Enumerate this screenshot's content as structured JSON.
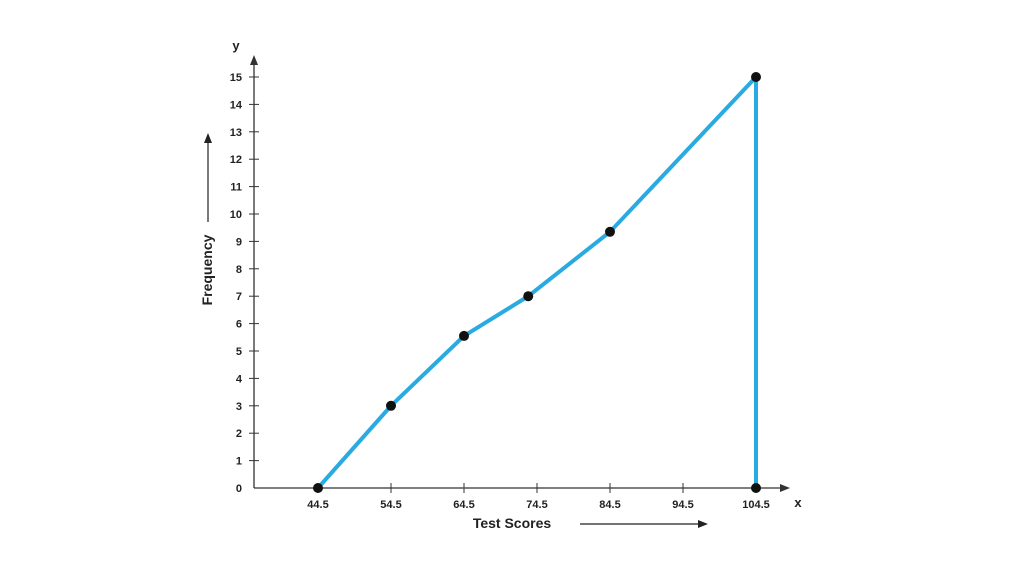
{
  "chart_data": {
    "type": "line",
    "title": "",
    "xlabel": "Test Scores",
    "ylabel": "Frequency",
    "x_axis_letter": "x",
    "y_axis_letter": "y",
    "x_ticks": [
      "44.5",
      "54.5",
      "64.5",
      "74.5",
      "84.5",
      "94.5",
      "104.5"
    ],
    "y_ticks": [
      "0",
      "1",
      "2",
      "3",
      "4",
      "5",
      "6",
      "7",
      "8",
      "9",
      "10",
      "11",
      "12",
      "13",
      "14",
      "15"
    ],
    "xlim": [
      34.5,
      110
    ],
    "ylim": [
      0,
      15
    ],
    "grid": false,
    "series": [
      {
        "color": "#29abe2",
        "points": [
          {
            "x": 44.5,
            "y": 0
          },
          {
            "x": 54.5,
            "y": 3
          },
          {
            "x": 64.5,
            "y": 5.55
          },
          {
            "x": 73.3,
            "y": 7
          },
          {
            "x": 84.5,
            "y": 9.35
          },
          {
            "x": 104.5,
            "y": 15
          },
          {
            "x": 104.5,
            "y": 0
          }
        ]
      }
    ],
    "marker_color": "#111111",
    "axis_color": "#333333"
  }
}
